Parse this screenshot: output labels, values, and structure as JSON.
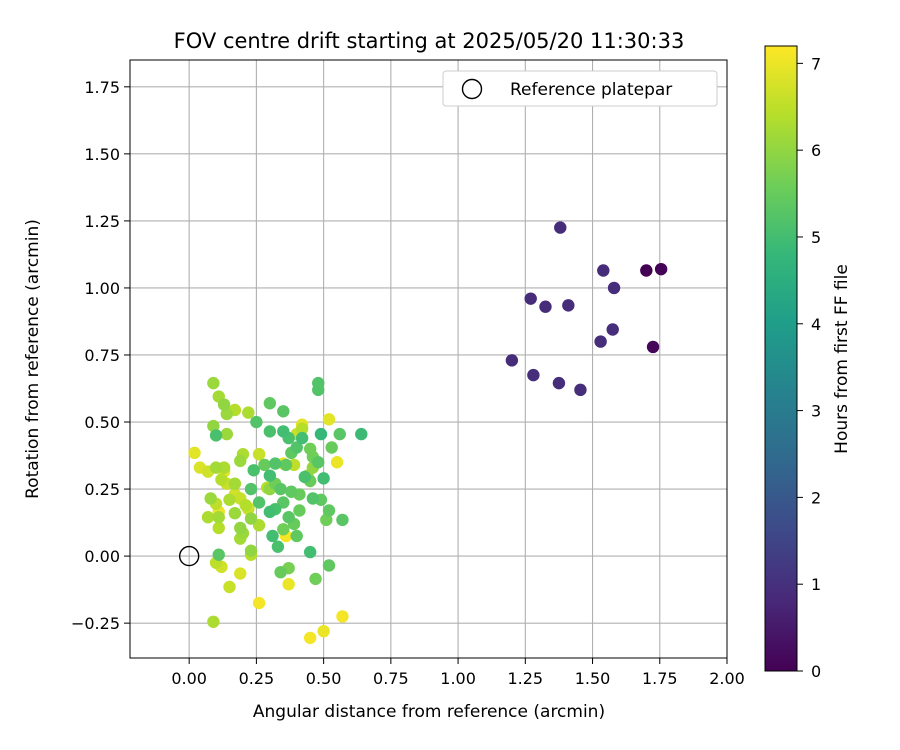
{
  "chart_data": {
    "type": "scatter",
    "title": "FOV centre drift starting at 2025/05/20 11:30:33",
    "xlabel": "Angular distance from reference (arcmin)",
    "ylabel": "Rotation from reference (arcmin)",
    "xlim": [
      -0.22,
      2.0
    ],
    "ylim": [
      -0.38,
      1.85
    ],
    "xticks": [
      0.0,
      0.25,
      0.5,
      0.75,
      1.0,
      1.25,
      1.5,
      1.75,
      2.0
    ],
    "xtick_labels": [
      "0.00",
      "0.25",
      "0.50",
      "0.75",
      "1.00",
      "1.25",
      "1.50",
      "1.75",
      "2.00"
    ],
    "yticks": [
      -0.25,
      0.0,
      0.25,
      0.5,
      0.75,
      1.0,
      1.25,
      1.5,
      1.75
    ],
    "ytick_labels": [
      "−0.25",
      "0.00",
      "0.25",
      "0.50",
      "0.75",
      "1.00",
      "1.25",
      "1.50",
      "1.75"
    ],
    "grid": true,
    "legend": {
      "position": "top-right",
      "entries": [
        "Reference platepar"
      ]
    },
    "colorbar": {
      "label": "Hours from first FF file",
      "range": [
        0,
        7.2
      ],
      "ticks": [
        0,
        1,
        2,
        3,
        4,
        5,
        6,
        7
      ],
      "colormap": "viridis",
      "colormap_stops": [
        "#440154",
        "#482878",
        "#3e4989",
        "#31688e",
        "#26828e",
        "#1f9e89",
        "#35b779",
        "#6ece58",
        "#b5de2b",
        "#fde725"
      ]
    },
    "reference_point": {
      "x": 0.0,
      "y": 0.0
    },
    "points": [
      {
        "x": 1.7,
        "y": 1.065,
        "t": 0.0
      },
      {
        "x": 1.755,
        "y": 1.07,
        "t": 0.05
      },
      {
        "x": 1.725,
        "y": 0.78,
        "t": 0.1
      },
      {
        "x": 1.38,
        "y": 1.225,
        "t": 0.9
      },
      {
        "x": 1.54,
        "y": 1.065,
        "t": 0.9
      },
      {
        "x": 1.58,
        "y": 1.0,
        "t": 0.95
      },
      {
        "x": 1.27,
        "y": 0.96,
        "t": 0.9
      },
      {
        "x": 1.325,
        "y": 0.93,
        "t": 0.9
      },
      {
        "x": 1.41,
        "y": 0.935,
        "t": 0.95
      },
      {
        "x": 1.575,
        "y": 0.845,
        "t": 0.95
      },
      {
        "x": 1.53,
        "y": 0.8,
        "t": 0.95
      },
      {
        "x": 1.2,
        "y": 0.73,
        "t": 0.9
      },
      {
        "x": 1.28,
        "y": 0.675,
        "t": 0.95
      },
      {
        "x": 1.375,
        "y": 0.645,
        "t": 0.95
      },
      {
        "x": 1.455,
        "y": 0.62,
        "t": 0.95
      },
      {
        "x": 0.48,
        "y": 0.645,
        "t": 5.2
      },
      {
        "x": 0.48,
        "y": 0.62,
        "t": 5.2
      },
      {
        "x": 0.3,
        "y": 0.57,
        "t": 5.4
      },
      {
        "x": 0.35,
        "y": 0.54,
        "t": 5.3
      },
      {
        "x": 0.25,
        "y": 0.5,
        "t": 5.2
      },
      {
        "x": 0.3,
        "y": 0.465,
        "t": 5.1
      },
      {
        "x": 0.35,
        "y": 0.465,
        "t": 5.0
      },
      {
        "x": 0.37,
        "y": 0.44,
        "t": 5.1
      },
      {
        "x": 0.42,
        "y": 0.44,
        "t": 5.0
      },
      {
        "x": 0.49,
        "y": 0.455,
        "t": 4.8
      },
      {
        "x": 0.56,
        "y": 0.455,
        "t": 5.3
      },
      {
        "x": 0.64,
        "y": 0.455,
        "t": 4.9
      },
      {
        "x": 0.53,
        "y": 0.405,
        "t": 5.5
      },
      {
        "x": 0.4,
        "y": 0.405,
        "t": 5.2
      },
      {
        "x": 0.45,
        "y": 0.4,
        "t": 5.6
      },
      {
        "x": 0.38,
        "y": 0.385,
        "t": 5.4
      },
      {
        "x": 0.46,
        "y": 0.37,
        "t": 5.6
      },
      {
        "x": 0.48,
        "y": 0.35,
        "t": 5.3
      },
      {
        "x": 0.28,
        "y": 0.34,
        "t": 5.5
      },
      {
        "x": 0.32,
        "y": 0.345,
        "t": 5.2
      },
      {
        "x": 0.36,
        "y": 0.34,
        "t": 5.4
      },
      {
        "x": 0.24,
        "y": 0.32,
        "t": 5.1
      },
      {
        "x": 0.3,
        "y": 0.3,
        "t": 5.0
      },
      {
        "x": 0.43,
        "y": 0.295,
        "t": 5.1
      },
      {
        "x": 0.5,
        "y": 0.29,
        "t": 5.0
      },
      {
        "x": 0.45,
        "y": 0.28,
        "t": 5.5
      },
      {
        "x": 0.32,
        "y": 0.27,
        "t": 5.6
      },
      {
        "x": 0.34,
        "y": 0.25,
        "t": 5.3
      },
      {
        "x": 0.23,
        "y": 0.25,
        "t": 5.2
      },
      {
        "x": 0.38,
        "y": 0.24,
        "t": 5.4
      },
      {
        "x": 0.41,
        "y": 0.23,
        "t": 5.5
      },
      {
        "x": 0.46,
        "y": 0.215,
        "t": 5.2
      },
      {
        "x": 0.49,
        "y": 0.21,
        "t": 5.4
      },
      {
        "x": 0.35,
        "y": 0.2,
        "t": 5.3
      },
      {
        "x": 0.26,
        "y": 0.2,
        "t": 5.2
      },
      {
        "x": 0.32,
        "y": 0.175,
        "t": 5.1
      },
      {
        "x": 0.3,
        "y": 0.165,
        "t": 5.0
      },
      {
        "x": 0.41,
        "y": 0.17,
        "t": 5.5
      },
      {
        "x": 0.37,
        "y": 0.145,
        "t": 5.3
      },
      {
        "x": 0.52,
        "y": 0.17,
        "t": 5.4
      },
      {
        "x": 0.51,
        "y": 0.135,
        "t": 5.6
      },
      {
        "x": 0.57,
        "y": 0.135,
        "t": 5.3
      },
      {
        "x": 0.39,
        "y": 0.12,
        "t": 5.5
      },
      {
        "x": 0.35,
        "y": 0.1,
        "t": 5.6
      },
      {
        "x": 0.31,
        "y": 0.075,
        "t": 5.0
      },
      {
        "x": 0.4,
        "y": 0.075,
        "t": 5.4
      },
      {
        "x": 0.33,
        "y": 0.035,
        "t": 5.1
      },
      {
        "x": 0.45,
        "y": 0.015,
        "t": 5.0
      },
      {
        "x": 0.52,
        "y": -0.035,
        "t": 5.4
      },
      {
        "x": 0.37,
        "y": -0.045,
        "t": 5.7
      },
      {
        "x": 0.34,
        "y": -0.06,
        "t": 5.5
      },
      {
        "x": 0.47,
        "y": -0.085,
        "t": 5.6
      },
      {
        "x": 0.11,
        "y": 0.005,
        "t": 5.3
      },
      {
        "x": 0.1,
        "y": 0.45,
        "t": 5.1
      },
      {
        "x": 0.09,
        "y": 0.645,
        "t": 6.1
      },
      {
        "x": 0.11,
        "y": 0.595,
        "t": 6.2
      },
      {
        "x": 0.13,
        "y": 0.565,
        "t": 6.0
      },
      {
        "x": 0.14,
        "y": 0.53,
        "t": 6.1
      },
      {
        "x": 0.17,
        "y": 0.545,
        "t": 6.4
      },
      {
        "x": 0.22,
        "y": 0.535,
        "t": 6.3
      },
      {
        "x": 0.09,
        "y": 0.485,
        "t": 6.0
      },
      {
        "x": 0.14,
        "y": 0.455,
        "t": 6.1
      },
      {
        "x": 0.42,
        "y": 0.475,
        "t": 6.4
      },
      {
        "x": 0.4,
        "y": 0.455,
        "t": 6.6
      },
      {
        "x": 0.2,
        "y": 0.38,
        "t": 6.3
      },
      {
        "x": 0.26,
        "y": 0.38,
        "t": 6.6
      },
      {
        "x": 0.04,
        "y": 0.33,
        "t": 6.8
      },
      {
        "x": 0.07,
        "y": 0.315,
        "t": 6.7
      },
      {
        "x": 0.1,
        "y": 0.33,
        "t": 6.2
      },
      {
        "x": 0.13,
        "y": 0.33,
        "t": 6.3
      },
      {
        "x": 0.19,
        "y": 0.355,
        "t": 6.1
      },
      {
        "x": 0.39,
        "y": 0.34,
        "t": 6.5
      },
      {
        "x": 0.14,
        "y": 0.27,
        "t": 6.6
      },
      {
        "x": 0.17,
        "y": 0.27,
        "t": 6.2
      },
      {
        "x": 0.12,
        "y": 0.285,
        "t": 6.4
      },
      {
        "x": 0.3,
        "y": 0.25,
        "t": 6.0
      },
      {
        "x": 0.08,
        "y": 0.215,
        "t": 6.1
      },
      {
        "x": 0.17,
        "y": 0.23,
        "t": 6.7
      },
      {
        "x": 0.19,
        "y": 0.215,
        "t": 6.6
      },
      {
        "x": 0.15,
        "y": 0.21,
        "t": 6.3
      },
      {
        "x": 0.1,
        "y": 0.195,
        "t": 6.5
      },
      {
        "x": 0.21,
        "y": 0.19,
        "t": 6.4
      },
      {
        "x": 0.22,
        "y": 0.175,
        "t": 6.6
      },
      {
        "x": 0.17,
        "y": 0.16,
        "t": 6.1
      },
      {
        "x": 0.07,
        "y": 0.145,
        "t": 6.3
      },
      {
        "x": 0.11,
        "y": 0.145,
        "t": 6.2
      },
      {
        "x": 0.23,
        "y": 0.14,
        "t": 6.0
      },
      {
        "x": 0.11,
        "y": 0.105,
        "t": 6.4
      },
      {
        "x": 0.19,
        "y": 0.105,
        "t": 6.0
      },
      {
        "x": 0.2,
        "y": 0.085,
        "t": 6.1
      },
      {
        "x": 0.26,
        "y": 0.115,
        "t": 6.3
      },
      {
        "x": 0.19,
        "y": 0.065,
        "t": 6.2
      },
      {
        "x": 0.23,
        "y": 0.02,
        "t": 6.0
      },
      {
        "x": 0.23,
        "y": 0.005,
        "t": 6.4
      },
      {
        "x": 0.1,
        "y": -0.025,
        "t": 6.5
      },
      {
        "x": 0.12,
        "y": -0.04,
        "t": 6.7
      },
      {
        "x": 0.19,
        "y": -0.065,
        "t": 6.8
      },
      {
        "x": 0.15,
        "y": -0.115,
        "t": 6.6
      },
      {
        "x": 0.09,
        "y": -0.245,
        "t": 6.3
      },
      {
        "x": 0.46,
        "y": 0.33,
        "t": 6.0
      },
      {
        "x": 0.44,
        "y": 0.3,
        "t": 6.1
      },
      {
        "x": 0.29,
        "y": 0.255,
        "t": 6.4
      },
      {
        "x": 0.52,
        "y": 0.51,
        "t": 6.9
      },
      {
        "x": 0.42,
        "y": 0.49,
        "t": 6.9
      },
      {
        "x": 0.02,
        "y": 0.385,
        "t": 6.9
      },
      {
        "x": 0.35,
        "y": 0.345,
        "t": 7.0
      },
      {
        "x": 0.55,
        "y": 0.35,
        "t": 7.0
      },
      {
        "x": 0.26,
        "y": 0.38,
        "t": 6.95
      },
      {
        "x": 0.13,
        "y": 0.315,
        "t": 6.9
      },
      {
        "x": 0.11,
        "y": 0.165,
        "t": 7.0
      },
      {
        "x": 0.22,
        "y": 0.18,
        "t": 7.0
      },
      {
        "x": 0.36,
        "y": 0.075,
        "t": 7.1
      },
      {
        "x": 0.37,
        "y": -0.105,
        "t": 7.0
      },
      {
        "x": 0.26,
        "y": -0.175,
        "t": 7.1
      },
      {
        "x": 0.57,
        "y": -0.225,
        "t": 7.1
      },
      {
        "x": 0.5,
        "y": -0.28,
        "t": 7.0
      },
      {
        "x": 0.45,
        "y": -0.305,
        "t": 7.1
      }
    ]
  }
}
